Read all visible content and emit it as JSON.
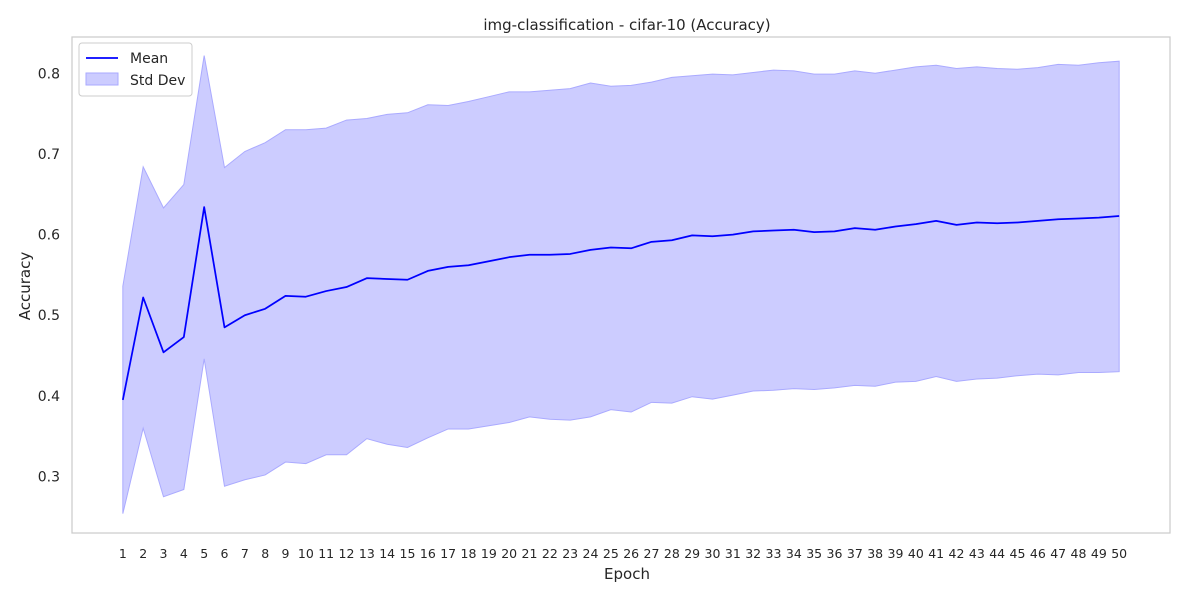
{
  "chart_data": {
    "type": "line",
    "title": "img-classification - cifar-10 (Accuracy)",
    "xlabel": "Epoch",
    "ylabel": "Accuracy",
    "x": [
      1,
      2,
      3,
      4,
      5,
      6,
      7,
      8,
      9,
      10,
      11,
      12,
      13,
      14,
      15,
      16,
      17,
      18,
      19,
      20,
      21,
      22,
      23,
      24,
      25,
      26,
      27,
      28,
      29,
      30,
      31,
      32,
      33,
      34,
      35,
      36,
      37,
      38,
      39,
      40,
      41,
      42,
      43,
      44,
      45,
      46,
      47,
      48,
      49,
      50
    ],
    "xlim": [
      -1.5,
      52.5
    ],
    "ylim": [
      0.23,
      0.845
    ],
    "yticks": [
      0.3,
      0.4,
      0.5,
      0.6,
      0.7,
      0.8
    ],
    "ytick_labels": [
      "0.3",
      "0.4",
      "0.5",
      "0.6",
      "0.7",
      "0.8"
    ],
    "grid": false,
    "legend_position": "top-left",
    "series": [
      {
        "name": "Mean",
        "kind": "line",
        "color": "#0000ff",
        "values": [
          0.395,
          0.522,
          0.454,
          0.473,
          0.634,
          0.485,
          0.5,
          0.508,
          0.524,
          0.523,
          0.53,
          0.535,
          0.546,
          0.545,
          0.544,
          0.555,
          0.56,
          0.562,
          0.567,
          0.572,
          0.575,
          0.575,
          0.576,
          0.581,
          0.584,
          0.583,
          0.591,
          0.593,
          0.599,
          0.598,
          0.6,
          0.604,
          0.605,
          0.606,
          0.603,
          0.604,
          0.608,
          0.606,
          0.61,
          0.613,
          0.617,
          0.612,
          0.615,
          0.614,
          0.615,
          0.617,
          0.619,
          0.62,
          0.621,
          0.623
        ]
      },
      {
        "name": "Std Dev",
        "kind": "band",
        "color": "#ccccff",
        "edge_color": "#aaaaff",
        "upper": [
          0.536,
          0.684,
          0.633,
          0.662,
          0.822,
          0.683,
          0.703,
          0.714,
          0.73,
          0.73,
          0.732,
          0.742,
          0.744,
          0.749,
          0.751,
          0.761,
          0.76,
          0.765,
          0.771,
          0.777,
          0.777,
          0.779,
          0.781,
          0.788,
          0.784,
          0.785,
          0.789,
          0.795,
          0.797,
          0.799,
          0.798,
          0.801,
          0.804,
          0.803,
          0.799,
          0.799,
          0.803,
          0.8,
          0.804,
          0.808,
          0.81,
          0.806,
          0.808,
          0.806,
          0.805,
          0.807,
          0.811,
          0.81,
          0.813,
          0.815
        ],
        "lower": [
          0.254,
          0.36,
          0.275,
          0.284,
          0.446,
          0.288,
          0.296,
          0.302,
          0.318,
          0.316,
          0.327,
          0.327,
          0.347,
          0.34,
          0.336,
          0.348,
          0.359,
          0.359,
          0.363,
          0.367,
          0.374,
          0.371,
          0.37,
          0.374,
          0.383,
          0.38,
          0.392,
          0.391,
          0.399,
          0.396,
          0.401,
          0.406,
          0.407,
          0.409,
          0.408,
          0.41,
          0.413,
          0.412,
          0.417,
          0.418,
          0.424,
          0.418,
          0.421,
          0.422,
          0.425,
          0.427,
          0.426,
          0.429,
          0.429,
          0.43
        ]
      }
    ]
  }
}
